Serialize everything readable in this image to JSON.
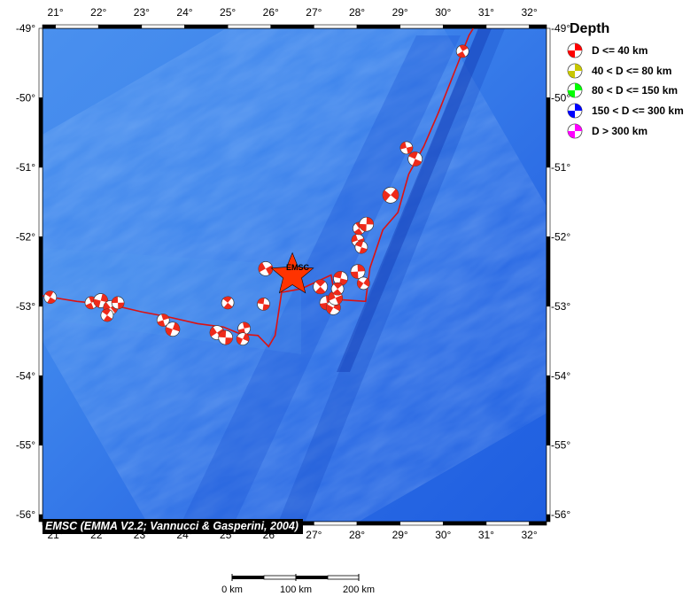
{
  "map": {
    "lon_range": [
      20.7,
      32.4
    ],
    "lat_range": [
      -56.1,
      -49.0
    ],
    "lon_ticks": [
      "21°",
      "22°",
      "23°",
      "24°",
      "25°",
      "26°",
      "27°",
      "28°",
      "29°",
      "30°",
      "31°",
      "32°"
    ],
    "lat_ticks": [
      "-49°",
      "-50°",
      "-51°",
      "-52°",
      "-53°",
      "-54°",
      "-55°",
      "-56°"
    ],
    "lat_tick_values": [
      -49,
      -50,
      -51,
      -52,
      -53,
      -54,
      -55,
      -56
    ],
    "lon_tick_values": [
      21,
      22,
      23,
      24,
      25,
      26,
      27,
      28,
      29,
      30,
      31,
      32
    ]
  },
  "legend": {
    "title": "Depth",
    "items": [
      {
        "label": "D <= 40 km",
        "color": "#ff0000"
      },
      {
        "label": "40 < D <= 80 km",
        "color": "#c8c800"
      },
      {
        "label": "80 < D <= 150 km",
        "color": "#00ff00"
      },
      {
        "label": "150 < D <= 300 km",
        "color": "#0000ff"
      },
      {
        "label": "D > 300 km",
        "color": "#ff00ff"
      }
    ]
  },
  "epicenter": {
    "label": "EMSC",
    "lon": 26.5,
    "lat": -52.55,
    "color": "#ff3300"
  },
  "credit": "EMSC (EMMA V2.2; Vannucci & Gasperini, 2004)",
  "scale_bar": {
    "labels": [
      "0 km",
      "100 km",
      "200 km"
    ]
  },
  "plate_boundary_color": "#dd1111",
  "plate_boundary": [
    [
      20.7,
      -52.85
    ],
    [
      21.5,
      -52.93
    ],
    [
      22.3,
      -52.98
    ],
    [
      23.0,
      -53.08
    ],
    [
      23.6,
      -53.15
    ],
    [
      24.3,
      -53.25
    ],
    [
      24.9,
      -53.3
    ],
    [
      25.3,
      -53.4
    ],
    [
      25.7,
      -53.42
    ],
    [
      25.95,
      -53.58
    ],
    [
      26.1,
      -53.42
    ],
    [
      26.25,
      -52.8
    ],
    [
      26.7,
      -52.75
    ],
    [
      27.4,
      -52.55
    ],
    [
      27.5,
      -52.9
    ],
    [
      28.2,
      -52.93
    ],
    [
      28.3,
      -52.45
    ],
    [
      28.6,
      -51.9
    ],
    [
      28.95,
      -51.65
    ],
    [
      29.2,
      -51.1
    ],
    [
      29.55,
      -50.7
    ],
    [
      29.9,
      -50.2
    ],
    [
      30.25,
      -49.65
    ],
    [
      30.6,
      -49.1
    ],
    [
      30.7,
      -49.0
    ]
  ],
  "mechanisms": [
    {
      "lon": 20.88,
      "lat": -52.87,
      "r": 7
    },
    {
      "lon": 21.83,
      "lat": -52.95,
      "r": 7
    },
    {
      "lon": 22.05,
      "lat": -52.92,
      "r": 8
    },
    {
      "lon": 22.28,
      "lat": -53.02,
      "r": 8
    },
    {
      "lon": 22.45,
      "lat": -52.95,
      "r": 7
    },
    {
      "lon": 22.2,
      "lat": -53.13,
      "r": 7
    },
    {
      "lon": 23.5,
      "lat": -53.2,
      "r": 7
    },
    {
      "lon": 23.72,
      "lat": -53.33,
      "r": 8
    },
    {
      "lon": 24.75,
      "lat": -53.38,
      "r": 8
    },
    {
      "lon": 24.95,
      "lat": -53.45,
      "r": 8
    },
    {
      "lon": 25.0,
      "lat": -52.95,
      "r": 7
    },
    {
      "lon": 25.38,
      "lat": -53.32,
      "r": 7
    },
    {
      "lon": 25.35,
      "lat": -53.47,
      "r": 7
    },
    {
      "lon": 25.88,
      "lat": -52.46,
      "r": 8
    },
    {
      "lon": 25.83,
      "lat": -52.97,
      "r": 7
    },
    {
      "lon": 27.15,
      "lat": -52.72,
      "r": 8
    },
    {
      "lon": 27.3,
      "lat": -52.95,
      "r": 8
    },
    {
      "lon": 27.45,
      "lat": -53.02,
      "r": 8
    },
    {
      "lon": 27.5,
      "lat": -52.88,
      "r": 8
    },
    {
      "lon": 27.62,
      "lat": -52.6,
      "r": 8
    },
    {
      "lon": 27.55,
      "lat": -52.75,
      "r": 7
    },
    {
      "lon": 28.02,
      "lat": -52.5,
      "r": 8
    },
    {
      "lon": 28.15,
      "lat": -52.67,
      "r": 7
    },
    {
      "lon": 28.02,
      "lat": -52.05,
      "r": 7
    },
    {
      "lon": 28.1,
      "lat": -52.15,
      "r": 7
    },
    {
      "lon": 28.05,
      "lat": -51.88,
      "r": 7
    },
    {
      "lon": 28.22,
      "lat": -51.82,
      "r": 8
    },
    {
      "lon": 28.78,
      "lat": -51.4,
      "r": 9
    },
    {
      "lon": 29.15,
      "lat": -50.72,
      "r": 7
    },
    {
      "lon": 29.35,
      "lat": -50.88,
      "r": 8
    },
    {
      "lon": 30.45,
      "lat": -49.33,
      "r": 7
    }
  ]
}
